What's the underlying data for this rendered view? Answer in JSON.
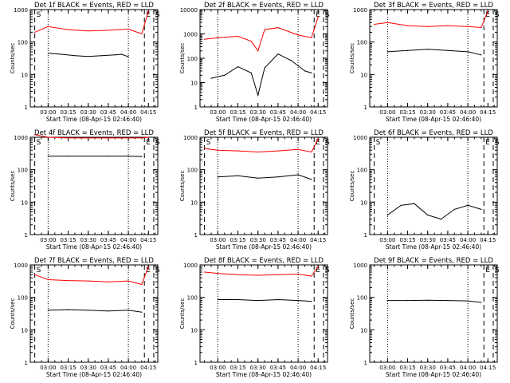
{
  "common": {
    "xlabel": "Start Time (08-Apr-15 02:46:40)",
    "ylabel": "Counts/sec",
    "x_ticks": [
      "03:00",
      "03:15",
      "03:30",
      "03:45",
      "04:00",
      "04:15"
    ],
    "y_ticks": [
      "1",
      "10",
      "100",
      "1000"
    ],
    "colors": {
      "events": "#000000",
      "lld": "#ff0000",
      "axes": "#000000"
    }
  },
  "chart_data": [
    {
      "type": "line",
      "title": "Det 1f BLACK = Events, RED = LLD",
      "y_scale": "log",
      "ylim": [
        1,
        1000
      ],
      "markers": [
        {
          "label": "S",
          "x": "02:50"
        },
        {
          "label": "E",
          "x": "04:12"
        },
        {
          "label": "S",
          "x": "04:19"
        }
      ],
      "series": [
        {
          "name": "Events",
          "x": [
            "03:00",
            "03:10",
            "03:20",
            "03:30",
            "03:40",
            "03:50",
            "03:55",
            "04:00"
          ],
          "y": [
            45,
            42,
            38,
            36,
            38,
            40,
            42,
            35
          ]
        },
        {
          "name": "LLD",
          "x": [
            "02:50",
            "03:00",
            "03:15",
            "03:30",
            "03:45",
            "04:00",
            "04:10",
            "04:15"
          ],
          "y": [
            200,
            300,
            240,
            220,
            230,
            250,
            180,
            900
          ]
        }
      ]
    },
    {
      "type": "line",
      "title": "Det 2f BLACK = Events, RED = LLD",
      "y_scale": "log",
      "ylim": [
        1,
        10000
      ],
      "markers": [
        {
          "label": "E",
          "x": "04:12"
        },
        {
          "label": "S",
          "x": "04:19"
        }
      ],
      "series": [
        {
          "name": "Events",
          "x": [
            "02:55",
            "03:05",
            "03:15",
            "03:25",
            "03:30",
            "03:35",
            "03:45",
            "03:55",
            "04:05",
            "04:10"
          ],
          "y": [
            15,
            20,
            45,
            25,
            3,
            40,
            150,
            80,
            30,
            25
          ]
        },
        {
          "name": "LLD",
          "x": [
            "02:50",
            "03:00",
            "03:15",
            "03:25",
            "03:30",
            "03:35",
            "03:45",
            "04:00",
            "04:10",
            "04:15"
          ],
          "y": [
            600,
            700,
            800,
            500,
            200,
            1500,
            1800,
            900,
            700,
            5000
          ]
        }
      ]
    },
    {
      "type": "line",
      "title": "Det 3f BLACK = Events, RED = LLD",
      "y_scale": "log",
      "ylim": [
        1,
        1000
      ],
      "markers": [
        {
          "label": "E",
          "x": "04:12"
        },
        {
          "label": "S",
          "x": "04:19"
        }
      ],
      "series": [
        {
          "name": "Events",
          "x": [
            "03:00",
            "03:15",
            "03:30",
            "03:45",
            "04:00",
            "04:10"
          ],
          "y": [
            50,
            55,
            60,
            55,
            50,
            40
          ]
        },
        {
          "name": "LLD",
          "x": [
            "02:50",
            "03:00",
            "03:15",
            "03:30",
            "03:45",
            "04:00",
            "04:10",
            "04:15"
          ],
          "y": [
            350,
            400,
            320,
            300,
            320,
            300,
            280,
            900
          ]
        }
      ]
    },
    {
      "type": "line",
      "title": "Det 4f BLACK = Events, RED = LLD",
      "y_scale": "log",
      "ylim": [
        1,
        1000
      ],
      "markers": [
        {
          "label": "S",
          "x": "02:50"
        },
        {
          "label": "E",
          "x": "04:12"
        },
        {
          "label": "S",
          "x": "04:19"
        }
      ],
      "series": [
        {
          "name": "Events",
          "x": [
            "03:00",
            "03:15",
            "03:30",
            "03:45",
            "04:00",
            "04:10"
          ],
          "y": [
            260,
            260,
            260,
            260,
            260,
            255
          ]
        },
        {
          "name": "LLD",
          "x": [
            "02:50",
            "03:00",
            "03:15",
            "03:30",
            "03:45",
            "04:00",
            "04:10",
            "04:15"
          ],
          "y": [
            1200,
            1000,
            950,
            950,
            950,
            950,
            950,
            1000
          ]
        }
      ]
    },
    {
      "type": "line",
      "title": "Det 5f BLACK = Events, RED = LLD",
      "y_scale": "log",
      "ylim": [
        1,
        1000
      ],
      "markers": [
        {
          "label": "S",
          "x": "02:50"
        },
        {
          "label": "E",
          "x": "04:12"
        },
        {
          "label": "S",
          "x": "04:19"
        }
      ],
      "series": [
        {
          "name": "Events",
          "x": [
            "03:00",
            "03:15",
            "03:30",
            "03:45",
            "04:00",
            "04:10"
          ],
          "y": [
            60,
            65,
            55,
            60,
            70,
            50
          ]
        },
        {
          "name": "LLD",
          "x": [
            "02:50",
            "03:00",
            "03:15",
            "03:30",
            "03:45",
            "04:00",
            "04:10",
            "04:15"
          ],
          "y": [
            450,
            400,
            380,
            350,
            380,
            420,
            350,
            900
          ]
        }
      ]
    },
    {
      "type": "line",
      "title": "Det 6f BLACK = Events, RED = LLD",
      "y_scale": "log",
      "ylim": [
        1,
        1000
      ],
      "markers": [
        {
          "label": "S",
          "x": "02:50"
        },
        {
          "label": "E",
          "x": "04:12"
        },
        {
          "label": "S",
          "x": "04:19"
        }
      ],
      "series": [
        {
          "name": "Events",
          "x": [
            "03:00",
            "03:10",
            "03:20",
            "03:30",
            "03:40",
            "03:50",
            "04:00",
            "04:10"
          ],
          "y": [
            4,
            8,
            9,
            4,
            3,
            6,
            8,
            6
          ]
        }
      ]
    },
    {
      "type": "line",
      "title": "Det 7f BLACK = Events, RED = LLD",
      "y_scale": "log",
      "ylim": [
        1,
        1000
      ],
      "markers": [
        {
          "label": "S",
          "x": "02:50"
        },
        {
          "label": "E",
          "x": "04:12"
        },
        {
          "label": "S",
          "x": "04:19"
        }
      ],
      "series": [
        {
          "name": "Events",
          "x": [
            "03:00",
            "03:15",
            "03:30",
            "03:45",
            "04:00",
            "04:10"
          ],
          "y": [
            40,
            42,
            40,
            38,
            40,
            35
          ]
        },
        {
          "name": "LLD",
          "x": [
            "02:50",
            "03:00",
            "03:15",
            "03:30",
            "03:45",
            "04:00",
            "04:10",
            "04:15"
          ],
          "y": [
            500,
            350,
            330,
            320,
            300,
            320,
            250,
            900
          ]
        }
      ]
    },
    {
      "type": "line",
      "title": "Det 8f BLACK = Events, RED = LLD",
      "y_scale": "log",
      "ylim": [
        1,
        1000
      ],
      "markers": [
        {
          "label": "E",
          "x": "04:12"
        },
        {
          "label": "S",
          "x": "04:19"
        }
      ],
      "series": [
        {
          "name": "Events",
          "x": [
            "03:00",
            "03:15",
            "03:30",
            "03:45",
            "04:00",
            "04:10"
          ],
          "y": [
            85,
            85,
            80,
            85,
            80,
            75
          ]
        },
        {
          "name": "LLD",
          "x": [
            "02:50",
            "03:00",
            "03:15",
            "03:30",
            "03:45",
            "04:00",
            "04:10",
            "04:15"
          ],
          "y": [
            600,
            550,
            500,
            480,
            500,
            520,
            450,
            900
          ]
        }
      ]
    },
    {
      "type": "line",
      "title": "Det 9f BLACK = Events, RED = LLD",
      "y_scale": "log",
      "ylim": [
        1,
        1000
      ],
      "markers": [
        {
          "label": "E",
          "x": "04:12"
        },
        {
          "label": "S",
          "x": "04:19"
        }
      ],
      "series": [
        {
          "name": "Events",
          "x": [
            "03:00",
            "03:15",
            "03:30",
            "03:45",
            "04:00",
            "04:10"
          ],
          "y": [
            80,
            80,
            82,
            80,
            78,
            70
          ]
        }
      ]
    }
  ]
}
